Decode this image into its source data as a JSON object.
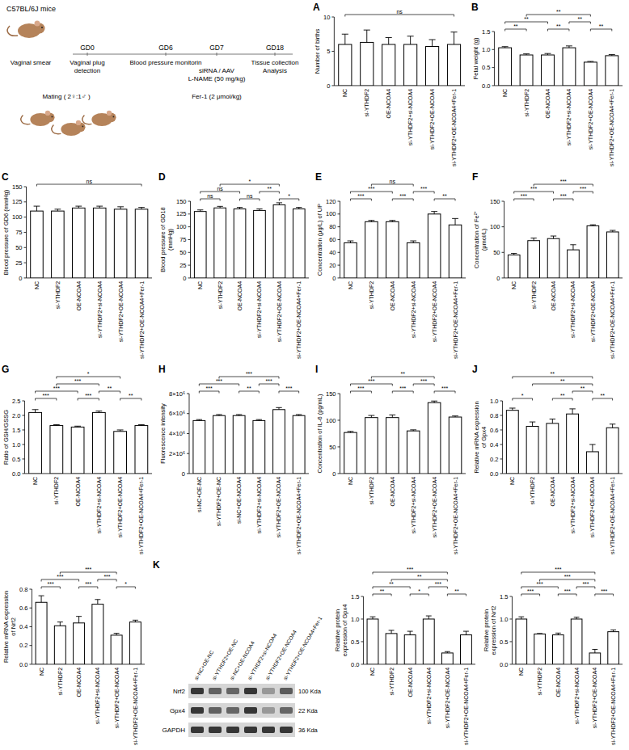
{
  "diagram": {
    "title": "C57BL/6J mice",
    "steps": [
      {
        "lines": [
          "Vaginal smear"
        ]
      },
      {
        "label": "GD0",
        "lines": [
          "Vaginal plug",
          "detection"
        ]
      },
      {
        "label": "GD6",
        "lines": [
          "Blood pressure monitorin"
        ]
      },
      {
        "label": "GD7",
        "lines": [
          "siRNA / AAV",
          "L-NAME (50 mg/kg)"
        ]
      },
      {
        "label": "GD18",
        "lines": [
          "Tissue collection",
          "Analysis"
        ]
      }
    ],
    "mating": "Mating ( 2♀:1♂ )",
    "drug": "Fer-1 (2 μmol/kg)"
  },
  "blot": {
    "title": "K",
    "lanes": [
      "si-NC+OE-NC",
      "si-YTHDF2+OE-NC",
      "si-NC+OE-NCOA4",
      "si-YTHDF2+si-NCOA4",
      "si-YTHDF2+OE-NCOA4",
      "si-YTHDF2+OE-NCOA4+Fer-1"
    ],
    "rows": [
      {
        "name": "Nrf2",
        "size": "100 Kda"
      },
      {
        "name": "Gpx4",
        "size": "22 Kda"
      },
      {
        "name": "GAPDH",
        "size": "36 Kda"
      }
    ]
  },
  "chart_data": [
    {
      "type": "bar",
      "title": "A",
      "y_label": "Number of births",
      "categories": [
        "NC",
        "si-YTHDF2",
        "OE-NCOA4",
        "si-YTHDF2+si-NCOA4",
        "si-YTHDF2+OE-NCOA4",
        "si-YTHDF2+OE-NCOA4+Fer-1"
      ],
      "values": [
        6,
        6.3,
        6,
        6,
        5.7,
        6
      ],
      "errors": [
        1.5,
        1.8,
        1,
        1.2,
        1,
        1.8
      ],
      "color": "#ffffff",
      "ylim": [
        0,
        10
      ],
      "yticks": [
        0,
        5,
        10
      ],
      "annotations": [
        {
          "from": 0,
          "to": 5,
          "label": "ns"
        }
      ]
    },
    {
      "type": "bar",
      "title": "B",
      "y_label": "Fetal weight (g)",
      "categories": [
        "NC",
        "si-YTHDF2",
        "OE-NCOA4",
        "si-YTHDF2+si-NCOA4",
        "si-YTHDF2+OE-NCOA4",
        "si-YTHDF2+OE-NCOA4+Fer-1"
      ],
      "values": [
        1.05,
        0.85,
        0.85,
        1.05,
        0.65,
        0.83
      ],
      "errors": [
        0.03,
        0.03,
        0.04,
        0.05,
        0.02,
        0.03
      ],
      "color": "#ffffff",
      "ylim": [
        0,
        1.5
      ],
      "yticks": [
        {
          "value": 0,
          "label": "0.0"
        },
        0.5,
        {
          "value": 1,
          "label": "1.0"
        },
        1.5
      ],
      "annotations": [
        {
          "from": 0,
          "to": 1,
          "label": "**"
        },
        {
          "from": 2,
          "to": 3,
          "label": "**"
        },
        {
          "from": 4,
          "to": 5,
          "label": "**"
        },
        {
          "from": 0,
          "to": 2,
          "label": "**"
        },
        {
          "from": 3,
          "to": 4,
          "label": "**"
        },
        {
          "from": 1,
          "to": 4,
          "label": "**"
        }
      ]
    },
    {
      "type": "bar",
      "title": "C",
      "y_label": "Blood pressure of GD6 (mmHg)",
      "categories": [
        "NC",
        "si-YTHDF2",
        "OE-NCOA4",
        "si-YTHDF2+si-NCOA4",
        "si-YTHDF2+OE-NCOA4",
        "si-YTHDF2+OE-NCOA4+Fer-1"
      ],
      "values": [
        110,
        110,
        115,
        115,
        113,
        113
      ],
      "errors": [
        8,
        3,
        3,
        3,
        4,
        3
      ],
      "color": "#ffffff",
      "ylim": [
        0,
        150
      ],
      "yticks": [
        0,
        25,
        50,
        75,
        100,
        125,
        150
      ],
      "annotations": [
        {
          "from": 0,
          "to": 5,
          "label": "ns"
        }
      ]
    },
    {
      "type": "bar",
      "title": "D",
      "y_label": "Blood pressure of GD18 (mmHg)",
      "categories": [
        "NC",
        "si-YTHDF2",
        "OE-NCOA4",
        "si-YTHDF2+si-NCOA4",
        "si-YTHDF2+OE-NCOA4",
        "si-YTHDF2+OE-NCOA4+Fer-1"
      ],
      "values": [
        130,
        137,
        135,
        132,
        143,
        135
      ],
      "errors": [
        3,
        3,
        3,
        3,
        4,
        3
      ],
      "color": "#ffffff",
      "ylim": [
        0,
        150
      ],
      "yticks": [
        0,
        25,
        50,
        75,
        100,
        125,
        150
      ],
      "annotations": [
        {
          "from": 0,
          "to": 1,
          "label": "ns"
        },
        {
          "from": 2,
          "to": 3,
          "label": "ns"
        },
        {
          "from": 4,
          "to": 5,
          "label": "*"
        },
        {
          "from": 0,
          "to": 2,
          "label": "ns"
        },
        {
          "from": 3,
          "to": 4,
          "label": "**"
        },
        {
          "from": 1,
          "to": 4,
          "label": "*"
        }
      ]
    },
    {
      "type": "bar",
      "title": "E",
      "y_label": "Concentration (μg/L) of UP",
      "categories": [
        "NC",
        "si-YTHDF2",
        "OE-NCOA4",
        "si-YTHDF2+si-NCOA4",
        "si-YTHDF2+OE-NCOA4",
        "si-YTHDF2+OE-NCOA4+Fer-1"
      ],
      "values": [
        55,
        88,
        88,
        55,
        100,
        83
      ],
      "errors": [
        3,
        2,
        2,
        3,
        4,
        10
      ],
      "color": "#ffffff",
      "ylim": [
        0,
        120
      ],
      "yticks": [
        0,
        20,
        40,
        60,
        80,
        100,
        120
      ],
      "annotations": [
        {
          "from": 0,
          "to": 1,
          "label": "***"
        },
        {
          "from": 2,
          "to": 3,
          "label": "***"
        },
        {
          "from": 4,
          "to": 5,
          "label": "**"
        },
        {
          "from": 0,
          "to": 2,
          "label": "***"
        },
        {
          "from": 3,
          "to": 4,
          "label": "***"
        },
        {
          "from": 1,
          "to": 3,
          "label": "ns"
        }
      ]
    },
    {
      "type": "bar",
      "title": "F",
      "y_label": "Concentration of Fe²⁺ (μmol/L)",
      "categories": [
        "NC",
        "si-YTHDF2",
        "OE-NCOA4",
        "si-YTHDF2+si-NCOA4",
        "si-YTHDF2+OE-NCOA4",
        "si-YTHDF2+OE-NCOA4+Fer-1"
      ],
      "values": [
        45,
        73,
        77,
        55,
        102,
        90
      ],
      "errors": [
        3,
        5,
        5,
        10,
        2,
        3
      ],
      "color": "#ffffff",
      "ylim": [
        0,
        150
      ],
      "yticks": [
        0,
        50,
        100,
        150
      ],
      "annotations": [
        {
          "from": 0,
          "to": 1,
          "label": "***"
        },
        {
          "from": 2,
          "to": 3,
          "label": "***"
        },
        {
          "from": 0,
          "to": 2,
          "label": "***"
        },
        {
          "from": 3,
          "to": 4,
          "label": "***"
        },
        {
          "from": 1,
          "to": 4,
          "label": "***"
        }
      ]
    },
    {
      "type": "bar",
      "title": "G",
      "y_label": "Ratio of GSH/GSSG",
      "categories": [
        "NC",
        "si-YTHDF2",
        "OE-NCOA4",
        "si-YTHDF2+si-NCOA4",
        "si-YTHDF2+OE-NCOA4",
        "si-YTHDF2+OE-NCOA4+Fer-1"
      ],
      "values": [
        2.1,
        1.65,
        1.6,
        2.1,
        1.45,
        1.65
      ],
      "errors": [
        0.1,
        0.03,
        0.03,
        0.05,
        0.05,
        0.03
      ],
      "color": "#ffffff",
      "ylim": [
        0,
        2.5
      ],
      "yticks": [
        {
          "value": 0,
          "label": "0.0"
        },
        0.5,
        {
          "value": 1,
          "label": "1.0"
        },
        1.5,
        {
          "value": 2,
          "label": "2.0"
        },
        2.5
      ],
      "annotations": [
        {
          "from": 0,
          "to": 1,
          "label": "***"
        },
        {
          "from": 2,
          "to": 3,
          "label": "***"
        },
        {
          "from": 4,
          "to": 5,
          "label": "**"
        },
        {
          "from": 0,
          "to": 2,
          "label": "***"
        },
        {
          "from": 3,
          "to": 4,
          "label": "**"
        },
        {
          "from": 1,
          "to": 3,
          "label": "***"
        },
        {
          "from": 1,
          "to": 4,
          "label": "*"
        }
      ]
    },
    {
      "type": "bar",
      "title": "H",
      "y_label": "Fluorescence intensity",
      "categories": [
        "si-NC+OE-NC",
        "si-YTHDF2+OE-NC",
        "si-NC+OE-NCOA4",
        "si-YTHDF2+si-NCOA4",
        "si-YTHDF2+OE-NCOA4",
        "si-YTHDF2+OE-NCOA4+Fer-1"
      ],
      "values": [
        5300000,
        5800000,
        5800000,
        5300000,
        6400000,
        5800000
      ],
      "errors": [
        100000,
        100000,
        100000,
        100000,
        200000,
        100000
      ],
      "color": "#ffffff",
      "ylim": [
        0,
        8000000
      ],
      "yticks": [
        0,
        {
          "value": 2000000,
          "label": "2×10⁶"
        },
        {
          "value": 4000000,
          "label": "4×10⁶"
        },
        {
          "value": 6000000,
          "label": "6×10⁶"
        },
        {
          "value": 8000000,
          "label": "8×10⁶"
        }
      ],
      "annotations": [
        {
          "from": 0,
          "to": 1,
          "label": "***"
        },
        {
          "from": 2,
          "to": 3,
          "label": "**"
        },
        {
          "from": 4,
          "to": 5,
          "label": "***"
        },
        {
          "from": 0,
          "to": 2,
          "label": "***"
        },
        {
          "from": 3,
          "to": 4,
          "label": "***"
        },
        {
          "from": 1,
          "to": 4,
          "label": "***"
        }
      ]
    },
    {
      "type": "bar",
      "title": "I",
      "y_label": "Concentration of IL-6 (pg/mL)",
      "categories": [
        "NC",
        "si-YTHDF2",
        "OE-NCOA4",
        "si-YTHDF2+si-NCOA4",
        "si-YTHDF2+OE-NCOA4",
        "si-YTHDF2+OE-NCOA4+Fer-1"
      ],
      "values": [
        77,
        105,
        105,
        80,
        133,
        106
      ],
      "errors": [
        2,
        4,
        5,
        2,
        3,
        2
      ],
      "color": "#ffffff",
      "ylim": [
        0,
        150
      ],
      "yticks": [
        0,
        50,
        100,
        150
      ],
      "annotations": [
        {
          "from": 0,
          "to": 1,
          "label": "***"
        },
        {
          "from": 2,
          "to": 3,
          "label": "***"
        },
        {
          "from": 4,
          "to": 5,
          "label": "***"
        },
        {
          "from": 0,
          "to": 2,
          "label": "***"
        },
        {
          "from": 3,
          "to": 4,
          "label": "***"
        },
        {
          "from": 1,
          "to": 4,
          "label": "**"
        }
      ]
    },
    {
      "type": "bar",
      "title": "J",
      "y_label": "Relative mRNA expression of Gpx4",
      "categories": [
        "NC",
        "si-YTHDF2",
        "OE-NCOA4",
        "si-YTHDF2+si-NCOA4",
        "si-YTHDF2+OE-NCOA4",
        "si-YTHDF2+OE-NCOA4+Fer-1"
      ],
      "values": [
        0.87,
        0.65,
        0.69,
        0.82,
        0.3,
        0.63
      ],
      "errors": [
        0.03,
        0.06,
        0.06,
        0.07,
        0.1,
        0.05
      ],
      "color": "#ffffff",
      "ylim": [
        0,
        1
      ],
      "yticks": [
        {
          "value": 0,
          "label": "0.0"
        },
        0.2,
        0.4,
        0.6,
        0.8,
        {
          "value": 1,
          "label": "1.0"
        }
      ],
      "annotations": [
        {
          "from": 0,
          "to": 1,
          "label": "*"
        },
        {
          "from": 2,
          "to": 3,
          "label": "**"
        },
        {
          "from": 4,
          "to": 5,
          "label": "**"
        },
        {
          "from": 3,
          "to": 4,
          "label": "**"
        },
        {
          "from": 1,
          "to": 4,
          "label": "**"
        },
        {
          "from": 0,
          "to": 4,
          "label": "**"
        }
      ]
    },
    {
      "type": "bar",
      "y_label": "Relative mRNA expression of Nrf2",
      "categories": [
        "NC",
        "si-YTHDF2",
        "OE-NCOA4",
        "si-YTHDF2+si-NCOA4",
        "si-YTHDF2+OE-NCOA4",
        "si-YTHDF2+OE-NCOA4+Fer-1"
      ],
      "values": [
        0.66,
        0.41,
        0.44,
        0.64,
        0.31,
        0.45
      ],
      "errors": [
        0.07,
        0.04,
        0.07,
        0.05,
        0.02,
        0.02
      ],
      "color": "#ffffff",
      "ylim": [
        0,
        0.8
      ],
      "yticks": [
        {
          "value": 0,
          "label": "0.0"
        },
        0.2,
        0.4,
        0.6,
        0.8
      ],
      "annotations": [
        {
          "from": 0,
          "to": 1,
          "label": "***"
        },
        {
          "from": 2,
          "to": 3,
          "label": "***"
        },
        {
          "from": 4,
          "to": 5,
          "label": "*"
        },
        {
          "from": 0,
          "to": 2,
          "label": "***"
        },
        {
          "from": 3,
          "to": 4,
          "label": "***"
        },
        {
          "from": 1,
          "to": 4,
          "label": "***"
        }
      ]
    },
    {
      "type": "bar",
      "y_label": "Relative protein expression of Gpx4",
      "categories": [
        "NC",
        "si-YTHDF2",
        "OE-NCOA4",
        "si-YTHDF2+si-NCOA4",
        "si-YTHDF2+OE-NCOA4",
        "si-YTHDF2+OE-NCOA4+Fer-1"
      ],
      "values": [
        1,
        0.68,
        0.65,
        1,
        0.25,
        0.65
      ],
      "errors": [
        0.05,
        0.07,
        0.08,
        0.07,
        0.03,
        0.08
      ],
      "color": "#ffffff",
      "ylim": [
        0,
        1.5
      ],
      "yticks": [
        {
          "value": 0,
          "label": "0.0"
        },
        0.5,
        {
          "value": 1,
          "label": "1.0"
        },
        1.5
      ],
      "annotations": [
        {
          "from": 0,
          "to": 1,
          "label": "**"
        },
        {
          "from": 2,
          "to": 3,
          "label": "*"
        },
        {
          "from": 4,
          "to": 5,
          "label": "**"
        },
        {
          "from": 0,
          "to": 2,
          "label": "**"
        },
        {
          "from": 3,
          "to": 4,
          "label": "***"
        },
        {
          "from": 1,
          "to": 4,
          "label": "**"
        },
        {
          "from": 0,
          "to": 4,
          "label": "***"
        }
      ]
    },
    {
      "type": "bar",
      "y_label": "Relative protein expression of Nrf2",
      "categories": [
        "NC",
        "si-YTHDF2",
        "OE-NCOA4",
        "si-YTHDF2+si-NCOA4",
        "si-YTHDF2+OE-NCOA4",
        "si-YTHDF2+OE-NCOA4+Fer-1"
      ],
      "values": [
        1,
        0.67,
        0.65,
        1,
        0.25,
        0.72
      ],
      "errors": [
        0.05,
        0.01,
        0.04,
        0.04,
        0.08,
        0.04
      ],
      "color": "#ffffff",
      "ylim": [
        0,
        1.5
      ],
      "yticks": [
        {
          "value": 0,
          "label": "0.0"
        },
        0.5,
        {
          "value": 1,
          "label": "1.0"
        },
        1.5
      ],
      "annotations": [
        {
          "from": 0,
          "to": 1,
          "label": "***"
        },
        {
          "from": 2,
          "to": 3,
          "label": "***"
        },
        {
          "from": 4,
          "to": 5,
          "label": "***"
        },
        {
          "from": 0,
          "to": 2,
          "label": "***"
        },
        {
          "from": 3,
          "to": 4,
          "label": "***"
        },
        {
          "from": 1,
          "to": 4,
          "label": "***"
        },
        {
          "from": 0,
          "to": 4,
          "label": "***"
        }
      ]
    }
  ]
}
